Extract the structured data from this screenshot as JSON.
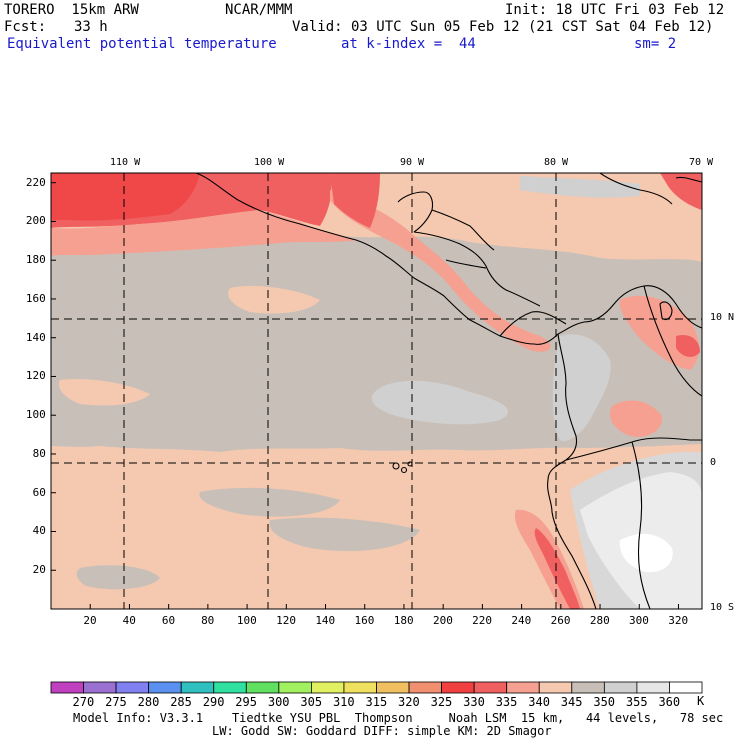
{
  "header": {
    "model": "TORERO  15km ARW",
    "center": "NCAR/MMM",
    "init": "Init: 18 UTC Fri 03 Feb 12",
    "fcst_label": "Fcst:",
    "fcst_value": "33 h",
    "valid": "Valid: 03 UTC Sun 05 Feb 12 (21 CST Sat 04 Feb 12)",
    "field": "Equivalent potential temperature",
    "level": "at k-index =  44",
    "smooth": "sm= 2"
  },
  "map": {
    "lon_labels": [
      "110 W",
      "100 W",
      "90 W",
      "80 W",
      "70 W"
    ],
    "lat_labels": [
      "10 N",
      "0",
      "10 S"
    ],
    "x_ticks": [
      "20",
      "40",
      "60",
      "80",
      "100",
      "120",
      "140",
      "160",
      "180",
      "200",
      "220",
      "240",
      "260",
      "280",
      "300",
      "320"
    ],
    "y_ticks": [
      "220",
      "200",
      "180",
      "160",
      "140",
      "120",
      "100",
      "80",
      "60",
      "40",
      "20"
    ]
  },
  "colorbar": {
    "levels": [
      "270",
      "275",
      "280",
      "285",
      "290",
      "295",
      "300",
      "305",
      "310",
      "315",
      "320",
      "325",
      "330",
      "335",
      "340",
      "345",
      "350",
      "355",
      "360"
    ],
    "unit": "K",
    "colors": [
      "#c040c0",
      "#9a70d0",
      "#8080f0",
      "#5a90f0",
      "#30c0c0",
      "#30e0a0",
      "#60e060",
      "#a0f060",
      "#e0f060",
      "#f0e060",
      "#f0c060",
      "#f09070",
      "#f04040",
      "#f06060",
      "#f5a090",
      "#f5c8b0",
      "#c8c0b8",
      "#d0d0d0",
      "#e6e6e6",
      "#ffffff"
    ]
  },
  "footer": {
    "line1": "Model Info: V3.3.1    Tiedtke YSU PBL  Thompson     Noah LSM  15 km,   44 levels,   78 sec",
    "line2": "LW: Godd SW: Goddard DIFF: simple KM: 2D Smagor"
  }
}
